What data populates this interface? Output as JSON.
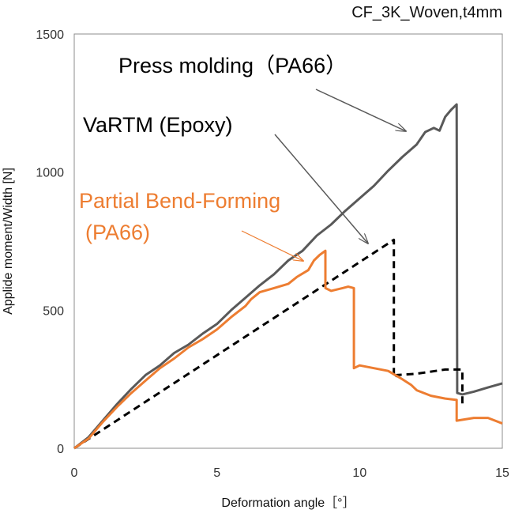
{
  "chart_data": {
    "type": "line",
    "title": "CF_3K_Woven,t4mm",
    "xlabel": "Deformation angle［°］",
    "ylabel": "Applide moment/Width [N]",
    "xlim": [
      0,
      15
    ],
    "ylim": [
      0,
      1500
    ],
    "xticks": [
      "0",
      "5",
      "10",
      "15"
    ],
    "yticks": [
      "0",
      "500",
      "1000",
      "1500"
    ],
    "grid": false,
    "legend": "none",
    "series": [
      {
        "color": "#595959",
        "style": "solid",
        "points": [
          [
            0,
            0
          ],
          [
            0.5,
            40
          ],
          [
            1,
            100
          ],
          [
            1.5,
            160
          ],
          [
            2,
            215
          ],
          [
            2.5,
            265
          ],
          [
            3,
            300
          ],
          [
            3.5,
            345
          ],
          [
            4,
            375
          ],
          [
            4.5,
            415
          ],
          [
            5,
            450
          ],
          [
            5.5,
            500
          ],
          [
            6,
            545
          ],
          [
            6.5,
            590
          ],
          [
            7,
            630
          ],
          [
            7.5,
            680
          ],
          [
            8,
            715
          ],
          [
            8.5,
            770
          ],
          [
            9,
            810
          ],
          [
            9.5,
            860
          ],
          [
            10,
            905
          ],
          [
            10.5,
            950
          ],
          [
            11,
            1005
          ],
          [
            11.5,
            1055
          ],
          [
            12,
            1100
          ],
          [
            12.3,
            1145
          ],
          [
            12.6,
            1160
          ],
          [
            12.8,
            1150
          ],
          [
            13,
            1200
          ],
          [
            13.2,
            1225
          ],
          [
            13.4,
            1245
          ],
          [
            13.42,
            200
          ],
          [
            13.6,
            195
          ],
          [
            14,
            205
          ],
          [
            14.5,
            220
          ],
          [
            15,
            235
          ]
        ]
      },
      {
        "color": "#000000",
        "style": "dashed",
        "points": [
          [
            0,
            0
          ],
          [
            11.2,
            755
          ],
          [
            11.2,
            255
          ],
          [
            11.3,
            265
          ],
          [
            12,
            270
          ],
          [
            13,
            285
          ],
          [
            13.6,
            285
          ],
          [
            13.6,
            150
          ]
        ]
      },
      {
        "color": "#ED7D31",
        "style": "solid",
        "points": [
          [
            0,
            0
          ],
          [
            0.5,
            35
          ],
          [
            1,
            95
          ],
          [
            1.5,
            150
          ],
          [
            2,
            200
          ],
          [
            2.5,
            245
          ],
          [
            3,
            290
          ],
          [
            3.5,
            325
          ],
          [
            4,
            365
          ],
          [
            4.5,
            395
          ],
          [
            5,
            430
          ],
          [
            5.5,
            475
          ],
          [
            6,
            515
          ],
          [
            6.2,
            540
          ],
          [
            6.5,
            565
          ],
          [
            7,
            580
          ],
          [
            7.5,
            595
          ],
          [
            7.8,
            620
          ],
          [
            8.2,
            645
          ],
          [
            8.4,
            680
          ],
          [
            8.6,
            700
          ],
          [
            8.8,
            715
          ],
          [
            8.8,
            580
          ],
          [
            9,
            570
          ],
          [
            9.4,
            580
          ],
          [
            9.6,
            585
          ],
          [
            9.8,
            580
          ],
          [
            9.8,
            290
          ],
          [
            10,
            300
          ],
          [
            10.5,
            290
          ],
          [
            11,
            280
          ],
          [
            11.5,
            250
          ],
          [
            11.8,
            230
          ],
          [
            12,
            210
          ],
          [
            12.5,
            190
          ],
          [
            13,
            180
          ],
          [
            13.4,
            175
          ],
          [
            13.4,
            100
          ],
          [
            14,
            110
          ],
          [
            14.5,
            110
          ],
          [
            15,
            90
          ]
        ]
      }
    ],
    "annotations": [
      {
        "text": "Press molding（PA66）",
        "color": "#000000"
      },
      {
        "text": "VaRTM (Epoxy)",
        "color": "#000000"
      },
      {
        "text": "Partial Bend-Forming",
        "color": "#ED7D31"
      },
      {
        "text": "(PA66)",
        "color": "#ED7D31"
      }
    ]
  }
}
